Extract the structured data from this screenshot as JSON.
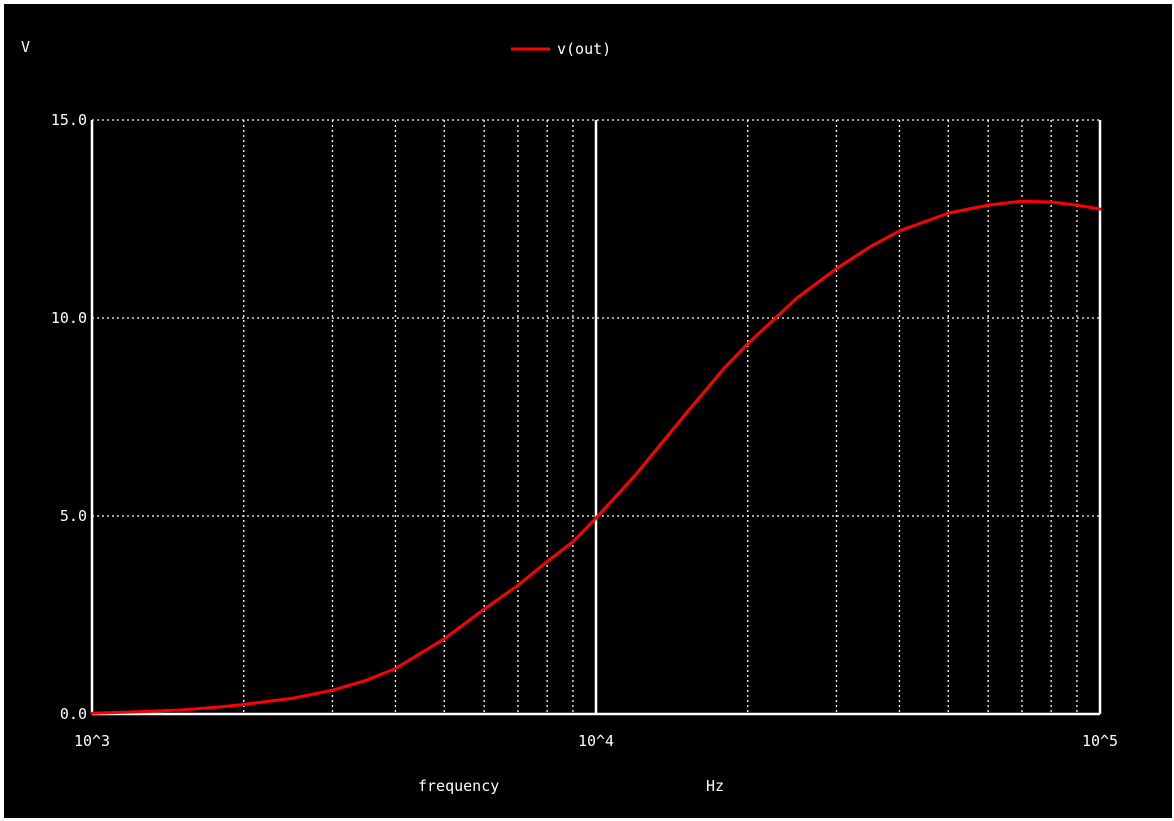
{
  "chart_data": {
    "type": "line",
    "title": "",
    "ylabel": "V",
    "xlabel": "frequency",
    "xunit": "Hz",
    "x_scale": "log",
    "xlim": [
      1000,
      100000
    ],
    "ylim": [
      0,
      15
    ],
    "grid": true,
    "legend_position": "top-center",
    "x_tick_labels": [
      "10^3",
      "10^4",
      "10^5"
    ],
    "y_tick_labels": [
      "0.0",
      "5.0",
      "10.0",
      "15.0"
    ],
    "y_ticks": [
      0,
      5,
      10,
      15
    ],
    "x_major_ticks": [
      1000,
      10000,
      100000
    ],
    "series": [
      {
        "name": "v(out)",
        "color": "#ff0000",
        "x": [
          1000,
          1200,
          1500,
          1800,
          2000,
          2500,
          3000,
          3500,
          4000,
          5000,
          6000,
          7000,
          8000,
          9000,
          10000,
          12000,
          15000,
          18000,
          20000,
          25000,
          30000,
          35000,
          40000,
          50000,
          60000,
          70000,
          80000,
          90000,
          100000
        ],
        "y": [
          0.02,
          0.05,
          0.1,
          0.18,
          0.24,
          0.4,
          0.6,
          0.85,
          1.15,
          1.9,
          2.65,
          3.25,
          3.85,
          4.35,
          4.95,
          6.05,
          7.55,
          8.75,
          9.35,
          10.5,
          11.25,
          11.8,
          12.2,
          12.65,
          12.85,
          12.95,
          12.93,
          12.85,
          12.75
        ]
      }
    ],
    "colors": {
      "background": "#000000",
      "axes": "#ffffff",
      "grid": "#ffffff"
    }
  }
}
